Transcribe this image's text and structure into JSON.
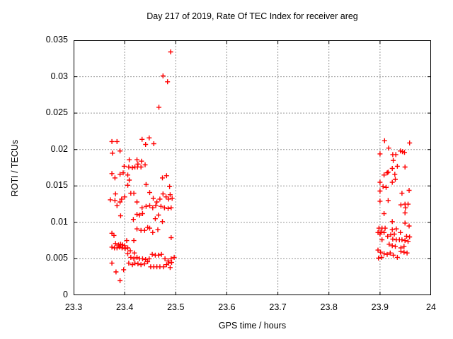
{
  "chart_data": {
    "type": "scatter",
    "title": "Day 217 of 2019, Rate Of TEC Index for receiver areg",
    "xlabel": "GPS time / hours",
    "ylabel": "ROTI / TECUs",
    "xlim": [
      23.3,
      24
    ],
    "ylim": [
      0,
      0.035
    ],
    "xticks": [
      23.3,
      23.4,
      23.5,
      23.6,
      23.7,
      23.8,
      23.9,
      24
    ],
    "xtick_labels": [
      "23.3",
      "23.4",
      "23.5",
      "23.6",
      "23.7",
      "23.8",
      "23.9",
      "24"
    ],
    "yticks": [
      0,
      0.005,
      0.01,
      0.015,
      0.02,
      0.025,
      0.03,
      0.035
    ],
    "ytick_labels": [
      "0",
      "0.005",
      "0.01",
      "0.015",
      "0.02",
      "0.025",
      "0.03",
      "0.035"
    ],
    "grid": true,
    "legend": "none",
    "marker": "plus",
    "colors": {
      "marker": "#ff0000",
      "grid": "#969696",
      "axis": "#000000",
      "background": "#ffffff"
    },
    "points": [
      [
        23.49,
        0.0334
      ],
      [
        23.475,
        0.0301
      ],
      [
        23.484,
        0.0293
      ],
      [
        23.467,
        0.0258
      ],
      [
        23.375,
        0.0211
      ],
      [
        23.385,
        0.0211
      ],
      [
        23.376,
        0.0195
      ],
      [
        23.391,
        0.0198
      ],
      [
        23.434,
        0.0214
      ],
      [
        23.441,
        0.0207
      ],
      [
        23.448,
        0.0216
      ],
      [
        23.457,
        0.0208
      ],
      [
        23.409,
        0.0186
      ],
      [
        23.424,
        0.0186
      ],
      [
        23.426,
        0.018
      ],
      [
        23.433,
        0.0184
      ],
      [
        23.399,
        0.0177
      ],
      [
        23.408,
        0.0176
      ],
      [
        23.415,
        0.0175
      ],
      [
        23.42,
        0.0176
      ],
      [
        23.425,
        0.0176
      ],
      [
        23.432,
        0.0176
      ],
      [
        23.44,
        0.0179
      ],
      [
        23.375,
        0.0167
      ],
      [
        23.381,
        0.0161
      ],
      [
        23.391,
        0.0166
      ],
      [
        23.397,
        0.0168
      ],
      [
        23.406,
        0.0165
      ],
      [
        23.409,
        0.0158
      ],
      [
        23.474,
        0.0161
      ],
      [
        23.482,
        0.0164
      ],
      [
        23.406,
        0.0151
      ],
      [
        23.442,
        0.0152
      ],
      [
        23.488,
        0.0149
      ],
      [
        23.382,
        0.0139
      ],
      [
        23.412,
        0.014
      ],
      [
        23.418,
        0.014
      ],
      [
        23.449,
        0.0141
      ],
      [
        23.372,
        0.0131
      ],
      [
        23.381,
        0.013
      ],
      [
        23.391,
        0.0128
      ],
      [
        23.394,
        0.0132
      ],
      [
        23.4,
        0.0135
      ],
      [
        23.424,
        0.0128
      ],
      [
        23.456,
        0.0133
      ],
      [
        23.463,
        0.0128
      ],
      [
        23.469,
        0.0132
      ],
      [
        23.475,
        0.0139
      ],
      [
        23.481,
        0.0135
      ],
      [
        23.486,
        0.0132
      ],
      [
        23.489,
        0.0138
      ],
      [
        23.493,
        0.0133
      ],
      [
        23.385,
        0.0123
      ],
      [
        23.392,
        0.0109
      ],
      [
        23.434,
        0.012
      ],
      [
        23.442,
        0.0122
      ],
      [
        23.449,
        0.0123
      ],
      [
        23.455,
        0.012
      ],
      [
        23.461,
        0.0123
      ],
      [
        23.471,
        0.0122
      ],
      [
        23.478,
        0.012
      ],
      [
        23.485,
        0.0119
      ],
      [
        23.491,
        0.012
      ],
      [
        23.424,
        0.0111
      ],
      [
        23.429,
        0.011
      ],
      [
        23.435,
        0.0112
      ],
      [
        23.417,
        0.0104
      ],
      [
        23.46,
        0.0105
      ],
      [
        23.466,
        0.011
      ],
      [
        23.474,
        0.0101
      ],
      [
        23.424,
        0.0091
      ],
      [
        23.432,
        0.0089
      ],
      [
        23.439,
        0.0089
      ],
      [
        23.445,
        0.0093
      ],
      [
        23.449,
        0.0092
      ],
      [
        23.455,
        0.0086
      ],
      [
        23.465,
        0.009
      ],
      [
        23.491,
        0.0079
      ],
      [
        23.375,
        0.0085
      ],
      [
        23.379,
        0.0082
      ],
      [
        23.404,
        0.0075
      ],
      [
        23.418,
        0.0075
      ],
      [
        23.382,
        0.0071
      ],
      [
        23.388,
        0.0069
      ],
      [
        23.392,
        0.007
      ],
      [
        23.396,
        0.0069
      ],
      [
        23.4,
        0.0068
      ],
      [
        23.375,
        0.0066
      ],
      [
        23.38,
        0.0065
      ],
      [
        23.385,
        0.0065
      ],
      [
        23.39,
        0.0066
      ],
      [
        23.395,
        0.0065
      ],
      [
        23.401,
        0.0064
      ],
      [
        23.406,
        0.0065
      ],
      [
        23.411,
        0.0061
      ],
      [
        23.406,
        0.0057
      ],
      [
        23.419,
        0.0058
      ],
      [
        23.412,
        0.0052
      ],
      [
        23.418,
        0.005
      ],
      [
        23.424,
        0.0052
      ],
      [
        23.429,
        0.005
      ],
      [
        23.435,
        0.005
      ],
      [
        23.441,
        0.0049
      ],
      [
        23.448,
        0.005
      ],
      [
        23.454,
        0.0056
      ],
      [
        23.46,
        0.0055
      ],
      [
        23.466,
        0.0055
      ],
      [
        23.472,
        0.0056
      ],
      [
        23.479,
        0.005
      ],
      [
        23.485,
        0.0047
      ],
      [
        23.491,
        0.005
      ],
      [
        23.497,
        0.0052
      ],
      [
        23.375,
        0.0044
      ],
      [
        23.383,
        0.0032
      ],
      [
        23.398,
        0.0035
      ],
      [
        23.391,
        0.002
      ],
      [
        23.408,
        0.0044
      ],
      [
        23.415,
        0.0042
      ],
      [
        23.42,
        0.0044
      ],
      [
        23.426,
        0.0043
      ],
      [
        23.432,
        0.0042
      ],
      [
        23.439,
        0.0043
      ],
      [
        23.445,
        0.0046
      ],
      [
        23.451,
        0.0039
      ],
      [
        23.457,
        0.0039
      ],
      [
        23.463,
        0.0039
      ],
      [
        23.469,
        0.0039
      ],
      [
        23.476,
        0.0039
      ],
      [
        23.482,
        0.0042
      ],
      [
        23.486,
        0.0044
      ],
      [
        23.489,
        0.0038
      ],
      [
        23.492,
        0.0045
      ],
      [
        23.909,
        0.0212
      ],
      [
        23.958,
        0.0209
      ],
      [
        23.917,
        0.0202
      ],
      [
        23.9,
        0.0194
      ],
      [
        23.925,
        0.0193
      ],
      [
        23.931,
        0.0193
      ],
      [
        23.94,
        0.0198
      ],
      [
        23.944,
        0.0197
      ],
      [
        23.948,
        0.0196
      ],
      [
        23.926,
        0.0185
      ],
      [
        23.924,
        0.0174
      ],
      [
        23.934,
        0.0177
      ],
      [
        23.949,
        0.0176
      ],
      [
        23.914,
        0.0168
      ],
      [
        23.908,
        0.0165
      ],
      [
        23.916,
        0.0169
      ],
      [
        23.929,
        0.0166
      ],
      [
        23.9,
        0.0155
      ],
      [
        23.924,
        0.0155
      ],
      [
        23.93,
        0.0159
      ],
      [
        23.906,
        0.0149
      ],
      [
        23.912,
        0.0148
      ],
      [
        23.9,
        0.0143
      ],
      [
        23.943,
        0.014
      ],
      [
        23.957,
        0.0144
      ],
      [
        23.9,
        0.0129
      ],
      [
        23.916,
        0.013
      ],
      [
        23.941,
        0.0124
      ],
      [
        23.949,
        0.0125
      ],
      [
        23.955,
        0.0125
      ],
      [
        23.95,
        0.012
      ],
      [
        23.908,
        0.0112
      ],
      [
        23.949,
        0.0113
      ],
      [
        23.924,
        0.0101
      ],
      [
        23.949,
        0.0099
      ],
      [
        23.957,
        0.0095
      ],
      [
        23.898,
        0.0092
      ],
      [
        23.904,
        0.0092
      ],
      [
        23.91,
        0.0092
      ],
      [
        23.924,
        0.009
      ],
      [
        23.932,
        0.0091
      ],
      [
        23.896,
        0.0086
      ],
      [
        23.902,
        0.0087
      ],
      [
        23.908,
        0.0086
      ],
      [
        23.94,
        0.0086
      ],
      [
        23.9,
        0.0084
      ],
      [
        23.921,
        0.0083
      ],
      [
        23.928,
        0.0084
      ],
      [
        23.915,
        0.0081
      ],
      [
        23.952,
        0.0081
      ],
      [
        23.958,
        0.008
      ],
      [
        23.904,
        0.0076
      ],
      [
        23.925,
        0.0077
      ],
      [
        23.932,
        0.0076
      ],
      [
        23.938,
        0.0076
      ],
      [
        23.943,
        0.0076
      ],
      [
        23.949,
        0.0075
      ],
      [
        23.955,
        0.0074
      ],
      [
        23.918,
        0.007
      ],
      [
        23.924,
        0.0068
      ],
      [
        23.93,
        0.0067
      ],
      [
        23.941,
        0.0065
      ],
      [
        23.947,
        0.0067
      ],
      [
        23.896,
        0.0062
      ],
      [
        23.901,
        0.0059
      ],
      [
        23.908,
        0.0057
      ],
      [
        23.914,
        0.0056
      ],
      [
        23.92,
        0.0058
      ],
      [
        23.926,
        0.0055
      ],
      [
        23.934,
        0.0052
      ],
      [
        23.941,
        0.006
      ],
      [
        23.947,
        0.0059
      ],
      [
        23.953,
        0.0058
      ],
      [
        23.897,
        0.0051
      ],
      [
        23.903,
        0.0052
      ]
    ]
  }
}
